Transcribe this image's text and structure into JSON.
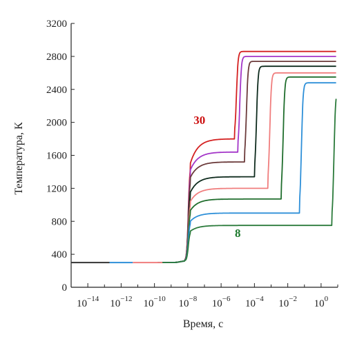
{
  "chart_data": {
    "type": "line",
    "xlabel": "Время, с",
    "ylabel": "Температура, К",
    "x_scale": "log",
    "xlim": [
      1e-15,
      10
    ],
    "ylim": [
      0,
      3200
    ],
    "x_ticks": [
      {
        "value": 1e-14,
        "base": "10",
        "exp": "−14"
      },
      {
        "value": 1e-12,
        "base": "10",
        "exp": "−12"
      },
      {
        "value": 1e-10,
        "base": "10",
        "exp": "−10"
      },
      {
        "value": 1e-08,
        "base": "10",
        "exp": "−8"
      },
      {
        "value": 1e-06,
        "base": "10",
        "exp": "−6"
      },
      {
        "value": 0.0001,
        "base": "10",
        "exp": "−4"
      },
      {
        "value": 0.01,
        "base": "10",
        "exp": "−2"
      },
      {
        "value": 1,
        "base": "10",
        "exp": "0"
      }
    ],
    "y_ticks": [
      0,
      400,
      800,
      1200,
      1600,
      2000,
      2400,
      2800,
      3200
    ],
    "grid": false,
    "annotations": [
      {
        "text": "30",
        "x": 5e-08,
        "y": 1980,
        "color": "#cc1010"
      },
      {
        "text": "8",
        "x": 1e-05,
        "y": 610,
        "color": "#1e7a2e"
      }
    ],
    "series": [
      {
        "color": "#d42020",
        "jump_log": -7.85,
        "plat_start": 1500,
        "plat": 1800,
        "rise_log": -5.2,
        "final": 2860,
        "start_log": -8.0
      },
      {
        "color": "#a335c8",
        "jump_log": -7.85,
        "plat_start": 1420,
        "plat": 1640,
        "rise_log": -5.0,
        "final": 2800,
        "start_log": -8.0
      },
      {
        "color": "#6b3a3a",
        "jump_log": -7.85,
        "plat_start": 1330,
        "plat": 1520,
        "rise_log": -4.6,
        "final": 2740,
        "start_log": -8.0
      },
      {
        "color": "#0d2a1c",
        "jump_log": -7.85,
        "plat_start": 1150,
        "plat": 1340,
        "rise_log": -4.0,
        "final": 2680,
        "start_log": -8.0
      },
      {
        "color": "#f07d7d",
        "jump_log": -7.85,
        "plat_start": 1040,
        "plat": 1200,
        "rise_log": -3.2,
        "final": 2600,
        "start_log": -8.0
      },
      {
        "color": "#1f6d2c",
        "jump_log": -7.85,
        "plat_start": 930,
        "plat": 1070,
        "rise_log": -2.4,
        "final": 2550,
        "start_log": -8.0
      },
      {
        "color": "#2d8fd8",
        "jump_log": -7.85,
        "plat_start": 800,
        "plat": 900,
        "rise_log": -1.3,
        "final": 2480,
        "start_log": -8.0
      },
      {
        "color": "#2a7a3a",
        "jump_log": -7.85,
        "plat_start": 680,
        "plat": 750,
        "rise_log": 0.65,
        "final": 2400,
        "start_log": -8.0
      }
    ],
    "baseline_segments": [
      {
        "color": "#333333",
        "x0": 1e-15,
        "x1": 2e-13,
        "y": 300
      },
      {
        "color": "#2d8fd8",
        "x0": 2e-13,
        "x1": 5e-12,
        "y": 300
      },
      {
        "color": "#f07d7d",
        "x0": 5e-12,
        "x1": 3e-10,
        "y": 300
      }
    ]
  }
}
